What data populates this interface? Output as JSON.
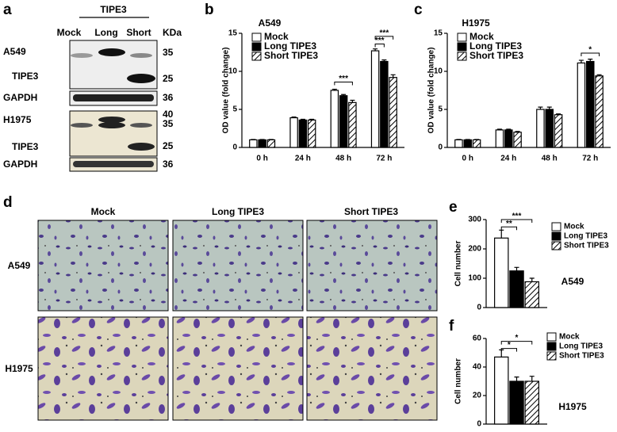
{
  "blot": {
    "letter": "a",
    "group_label": "TIPE3",
    "lanes": [
      "Mock",
      "Long",
      "Short"
    ],
    "unit": "KDa",
    "rows": [
      {
        "cell": "A549",
        "protein": "TIPE3",
        "markers": [
          "35",
          "25"
        ]
      },
      {
        "protein": "GAPDH",
        "markers": [
          "36"
        ]
      },
      {
        "cell": "H1975",
        "protein": "TIPE3",
        "markers": [
          "40",
          "35",
          "25"
        ]
      },
      {
        "protein": "GAPDH",
        "markers": [
          "36"
        ]
      }
    ]
  },
  "images": {
    "letter": "d",
    "columns": [
      "Mock",
      "Long TIPE3",
      "Short TIPE3"
    ],
    "rows": [
      "A549",
      "H1975"
    ]
  },
  "chart_data": [
    {
      "type": "bar",
      "letter": "b",
      "title": "A549",
      "y_label": "OD value (fold change)",
      "categories": [
        "0 h",
        "24 h",
        "48 h",
        "72 h"
      ],
      "series": [
        {
          "name": "Mock",
          "color": "#ffffff",
          "values": [
            1,
            3.9,
            7.5,
            12.7
          ],
          "errors": [
            0.05,
            0.1,
            0.15,
            0.25
          ]
        },
        {
          "name": "Long TIPE3",
          "color": "#000000",
          "values": [
            1,
            3.6,
            6.8,
            11.3
          ],
          "errors": [
            0.05,
            0.1,
            0.15,
            0.2
          ]
        },
        {
          "name": "Short TIPE3",
          "color": "#ffffff",
          "hatch": true,
          "values": [
            1,
            3.6,
            5.9,
            9.2
          ],
          "errors": [
            0.05,
            0.1,
            0.3,
            0.35
          ]
        }
      ],
      "ylim": [
        0,
        15
      ],
      "yticks": [
        0,
        5,
        10,
        15
      ],
      "annotations": [
        "***",
        "***",
        "***"
      ]
    },
    {
      "type": "bar",
      "letter": "c",
      "title": "H1975",
      "y_label": "OD value (fold change)",
      "categories": [
        "0 h",
        "24 h",
        "48 h",
        "72 h"
      ],
      "series": [
        {
          "name": "Mock",
          "color": "#ffffff",
          "values": [
            1,
            2.3,
            5.0,
            11.1
          ],
          "errors": [
            0.05,
            0.1,
            0.3,
            0.35
          ]
        },
        {
          "name": "Long TIPE3",
          "color": "#000000",
          "values": [
            1,
            2.3,
            5.0,
            11.3
          ],
          "errors": [
            0.05,
            0.1,
            0.3,
            0.3
          ]
        },
        {
          "name": "Short TIPE3",
          "color": "#ffffff",
          "hatch": true,
          "values": [
            1,
            2.0,
            4.3,
            9.4
          ],
          "errors": [
            0.05,
            0.1,
            0.1,
            0.15
          ]
        }
      ],
      "ylim": [
        0,
        15
      ],
      "yticks": [
        0,
        5,
        10,
        15
      ],
      "annotations": [
        "*"
      ]
    },
    {
      "type": "bar",
      "letter": "e",
      "title": "A549",
      "y_label": "Cell number",
      "categories": [
        null
      ],
      "series": [
        {
          "name": "Mock",
          "color": "#ffffff",
          "values": [
            237
          ],
          "errors": [
            27
          ]
        },
        {
          "name": "Long TIPE3",
          "color": "#000000",
          "values": [
            125
          ],
          "errors": [
            12
          ]
        },
        {
          "name": "Short TIPE3",
          "color": "#ffffff",
          "hatch": true,
          "values": [
            88
          ],
          "errors": [
            12
          ]
        }
      ],
      "ylim": [
        0,
        300
      ],
      "yticks": [
        0,
        100,
        200,
        300
      ],
      "annotations": [
        "**",
        "***"
      ]
    },
    {
      "type": "bar",
      "letter": "f",
      "title": "H1975",
      "y_label": "Cell number",
      "categories": [
        null
      ],
      "series": [
        {
          "name": "Mock",
          "color": "#ffffff",
          "values": [
            47
          ],
          "errors": [
            5
          ]
        },
        {
          "name": "Long TIPE3",
          "color": "#000000",
          "values": [
            30
          ],
          "errors": [
            3
          ]
        },
        {
          "name": "Short TIPE3",
          "color": "#ffffff",
          "hatch": true,
          "values": [
            30
          ],
          "errors": [
            3.5
          ]
        }
      ],
      "ylim": [
        0,
        60
      ],
      "yticks": [
        0,
        20,
        40,
        60
      ],
      "annotations": [
        "*",
        "*"
      ]
    }
  ]
}
